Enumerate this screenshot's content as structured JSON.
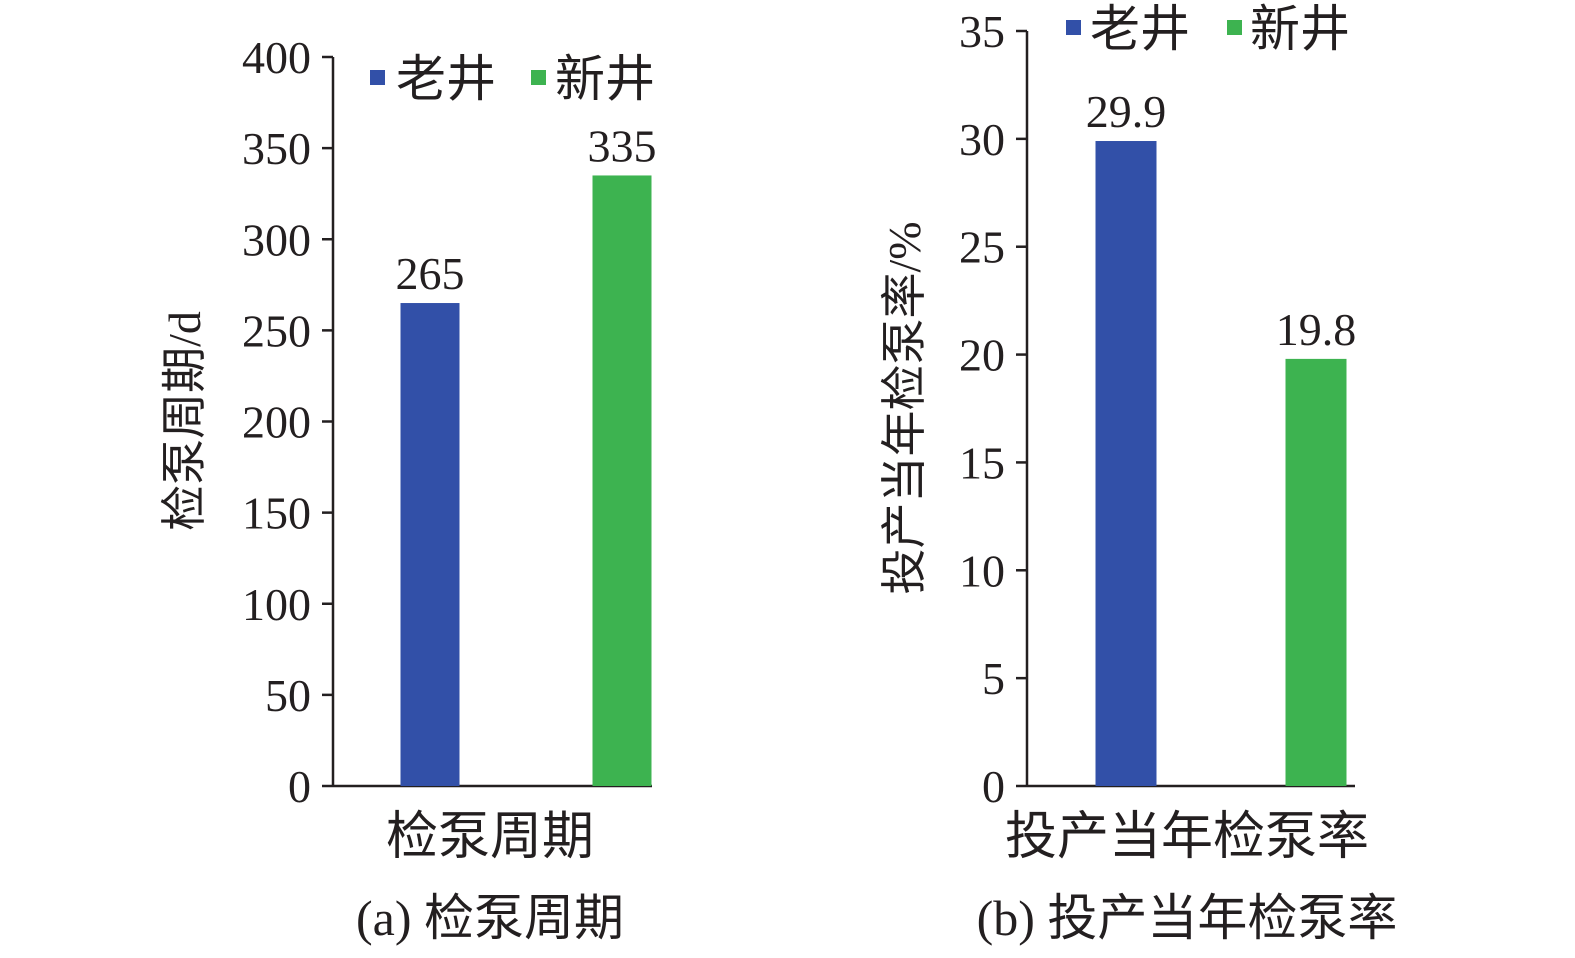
{
  "colors": {
    "old_well": "#3250a8",
    "new_well": "#3db350",
    "axis": "#231f20"
  },
  "chart_data": [
    {
      "type": "bar",
      "panel": "(a)",
      "caption": "(a) 检泵周期",
      "categories": [
        "检泵周期"
      ],
      "series": [
        {
          "name": "老井",
          "values": [
            265
          ]
        },
        {
          "name": "新井",
          "values": [
            335
          ]
        }
      ],
      "ylabel": "检泵周期/d",
      "ylim": [
        0,
        400
      ],
      "yticks": [
        0,
        50,
        100,
        150,
        200,
        250,
        300,
        350,
        400
      ],
      "data_labels": [
        "265",
        "335"
      ],
      "legend": "top",
      "grid": false
    },
    {
      "type": "bar",
      "panel": "(b)",
      "caption": "(b) 投产当年检泵率",
      "categories": [
        "投产当年检泵率"
      ],
      "series": [
        {
          "name": "老井",
          "values": [
            29.9
          ]
        },
        {
          "name": "新井",
          "values": [
            19.8
          ]
        }
      ],
      "ylabel": "投产当年检泵率/%",
      "ylim": [
        0,
        35
      ],
      "yticks": [
        0,
        5,
        10,
        15,
        20,
        25,
        30,
        35
      ],
      "data_labels": [
        "29.9",
        "19.8"
      ],
      "legend": "top",
      "grid": false
    }
  ]
}
